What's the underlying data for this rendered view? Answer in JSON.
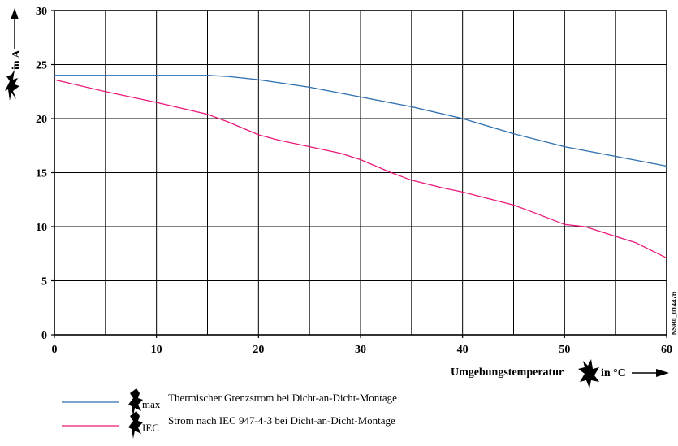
{
  "chart_data": {
    "type": "line",
    "xlim": [
      0,
      60
    ],
    "ylim": [
      0,
      30
    ],
    "x_ticks": [
      0,
      10,
      20,
      30,
      40,
      50,
      60
    ],
    "y_ticks": [
      0,
      5,
      10,
      15,
      20,
      25,
      30
    ],
    "grid": true,
    "xlabel": "Umgebungstemperatur",
    "xlabel_unit": "in °C",
    "ylabel_unit": "in A",
    "figure_code": "NSB0_01447b",
    "legend_position": "bottom-left",
    "series": [
      {
        "name": "Thermischer Grenzstrom bei Dicht-an-Dicht-Montage",
        "symbol_sub": "max",
        "color": "#2a6db0",
        "x": [
          0,
          5,
          10,
          15,
          17,
          20,
          25,
          30,
          35,
          40,
          45,
          50,
          55,
          60
        ],
        "y": [
          24.0,
          24.0,
          24.0,
          24.0,
          23.9,
          23.6,
          22.9,
          22.0,
          21.1,
          20.0,
          18.6,
          17.4,
          16.5,
          15.6
        ]
      },
      {
        "name": "Strom nach IEC 947-4-3 bei Dicht-an-Dicht-Montage",
        "symbol_sub": "IEC",
        "color": "#e8197a",
        "x": [
          0,
          5,
          10,
          15,
          17,
          20,
          22,
          25,
          28,
          30,
          33,
          35,
          38,
          40,
          45,
          47,
          50,
          52,
          55,
          57,
          60
        ],
        "y": [
          23.6,
          22.5,
          21.5,
          20.4,
          19.7,
          18.5,
          18.0,
          17.4,
          16.8,
          16.2,
          15.0,
          14.3,
          13.6,
          13.2,
          12.0,
          11.3,
          10.2,
          10.0,
          9.1,
          8.5,
          7.1
        ]
      }
    ]
  }
}
